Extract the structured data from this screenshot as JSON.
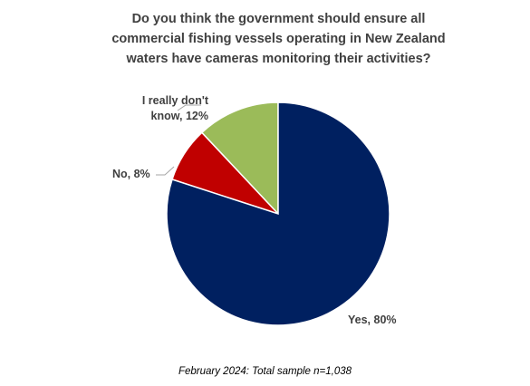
{
  "chart_data": {
    "type": "pie",
    "title": "Do you think the government should ensure all commercial fishing vessels operating in New Zealand waters have cameras monitoring their activities?",
    "categories": [
      "Yes",
      "No",
      "I really don't know"
    ],
    "values": [
      80,
      8,
      12
    ],
    "value_labels": [
      "Yes, 80%",
      "No, 8%",
      "I really don't know, 12%"
    ],
    "colors": [
      "#002060",
      "#c00000",
      "#9bbb59"
    ],
    "footnote": "February 2024: Total sample n=1,038"
  }
}
